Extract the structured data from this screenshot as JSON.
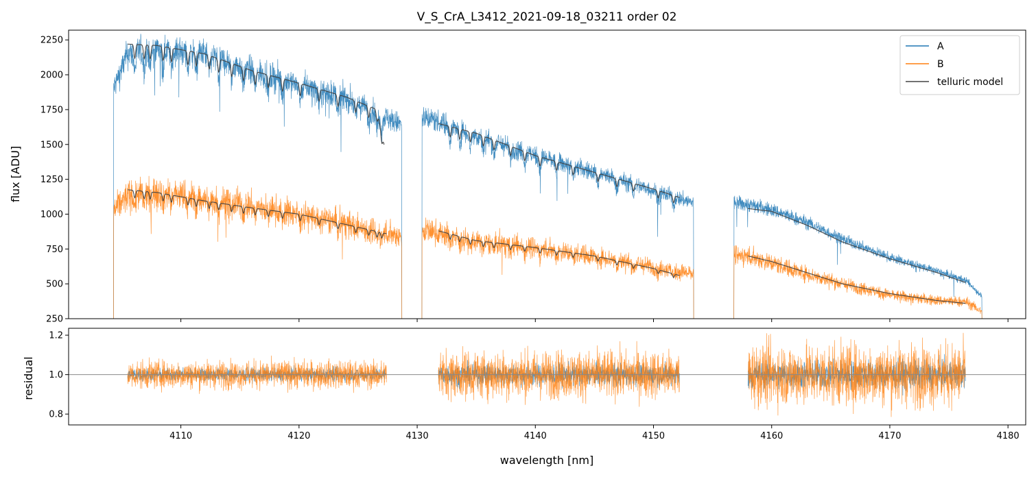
{
  "chart_data": {
    "type": "line",
    "title": "V_S_CrA_L3412_2021-09-18_03211  order 02",
    "xlabel": "wavelength [nm]",
    "xlim": [
      4100.5,
      4181.5
    ],
    "xticks": [
      4110,
      4120,
      4130,
      4140,
      4150,
      4160,
      4170,
      4180
    ],
    "colors": {
      "A": "#1f77b4",
      "B": "#ff7f0e",
      "telluric": "#444444",
      "refline": "#888888"
    },
    "legend": {
      "placement": "top-right",
      "entries": [
        "A",
        "B",
        "telluric model"
      ]
    },
    "panels": [
      {
        "name": "spectrum",
        "ylabel": "flux [ADU]",
        "ylim": [
          250,
          2320
        ],
        "yticks": [
          250,
          500,
          750,
          1000,
          1250,
          1500,
          1750,
          2000,
          2250
        ],
        "segments": [
          {
            "x_range": [
              4104.3,
              4128.7
            ],
            "A": {
              "x": [
                4104.3,
                4105.5,
                4108,
                4112,
                4116,
                4120,
                4124,
                4127.2,
                4128.7
              ],
              "y": [
                1900,
                2150,
                2190,
                2150,
                2030,
                1930,
                1830,
                1700,
                1640
              ]
            },
            "B": {
              "x": [
                4104.3,
                4105.5,
                4108,
                4112,
                4116,
                4120,
                4124,
                4127.2,
                4128.7
              ],
              "y": [
                1020,
                1130,
                1160,
                1110,
                1060,
                1000,
                930,
                870,
                840
              ]
            },
            "absorption_lines": [
              4106.1,
              4106.9,
              4107.4,
              4108.5,
              4109.2,
              4110.6,
              4111.3,
              4112.4,
              4113.2,
              4114.3,
              4115.3,
              4116.3,
              4117.4,
              4118.6,
              4120.1,
              4121.7,
              4123.3,
              4124.8,
              4125.9,
              4126.6,
              4127.0
            ]
          },
          {
            "x_range": [
              4130.4,
              4153.4
            ],
            "A": {
              "x": [
                4130.4,
                4131,
                4135,
                4140,
                4145,
                4150,
                4153.4
              ],
              "y": [
                1690,
                1690,
                1560,
                1420,
                1300,
                1170,
                1080
              ]
            },
            "B": {
              "x": [
                4130.4,
                4131,
                4135,
                4140,
                4145,
                4150,
                4153.4
              ],
              "y": [
                880,
                880,
                800,
                760,
                700,
                620,
                570
              ]
            },
            "absorption_lines": [
              4132.8,
              4133.6,
              4134.5,
              4135.6,
              4136.5,
              4137.9,
              4139.1,
              4140.4,
              4141.8,
              4143.2,
              4145.3,
              4146.9,
              4148.3,
              4150.4,
              4151.7
            ]
          },
          {
            "x_range": [
              4156.8,
              4177.8
            ],
            "A": {
              "x": [
                4156.8,
                4158,
                4160,
                4163,
                4166,
                4170,
                4174,
                4176.5,
                4177.8
              ],
              "y": [
                1080,
                1070,
                1030,
                940,
                820,
                690,
                590,
                520,
                410
              ]
            },
            "B": {
              "x": [
                4156.8,
                4158,
                4160,
                4163,
                4166,
                4170,
                4174,
                4176.5,
                4177.8
              ],
              "y": [
                710,
                700,
                650,
                570,
                500,
                420,
                380,
                370,
                300
              ]
            },
            "absorption_lines": []
          }
        ],
        "telluric_model": [
          {
            "x": [
              4105.5,
              4108,
              4112,
              4116,
              4120,
              4124,
              4126.6,
              4127.2
            ],
            "y": [
              2220,
              2210,
              2150,
              2030,
              1940,
              1840,
              1750,
              1500
            ]
          },
          {
            "x": [
              4105.5,
              4108,
              4112,
              4116,
              4120,
              4124,
              4127.4
            ],
            "y": [
              1175,
              1155,
              1095,
              1045,
              1000,
              925,
              860
            ]
          },
          {
            "x": [
              4131.8,
              4135,
              4140,
              4145,
              4150,
              4152.2
            ],
            "y": [
              1650,
              1580,
              1420,
              1300,
              1180,
              1120
            ]
          },
          {
            "x": [
              4131.8,
              4135,
              4140,
              4145,
              4150,
              4152.2
            ],
            "y": [
              880,
              810,
              760,
              700,
              610,
              560
            ]
          },
          {
            "x": [
              4158,
              4160,
              4163,
              4166,
              4170,
              4174,
              4176.4
            ],
            "y": [
              1040,
              1020,
              920,
              800,
              680,
              580,
              510
            ]
          },
          {
            "x": [
              4158,
              4160,
              4163,
              4166,
              4170,
              4174,
              4176.4
            ],
            "y": [
              700,
              660,
              580,
              500,
              430,
              380,
              360
            ]
          }
        ]
      },
      {
        "name": "residual",
        "ylabel": "residual",
        "ylim": [
          0.745,
          1.235
        ],
        "yticks": [
          0.8,
          1.0,
          1.2
        ],
        "reference": 1.0,
        "segments": [
          {
            "x_range": [
              4105.5,
              4127.4
            ],
            "scatter": 0.05
          },
          {
            "x_range": [
              4131.8,
              4152.2
            ],
            "scatter": 0.085
          },
          {
            "x_range": [
              4158.0,
              4176.4
            ],
            "scatter": 0.11
          }
        ]
      }
    ]
  }
}
